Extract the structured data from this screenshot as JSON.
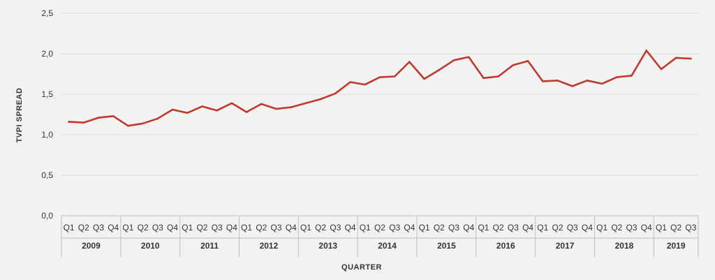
{
  "chart_data": {
    "type": "line",
    "title": "",
    "xlabel": "QUARTER",
    "ylabel": "TVPI SPREAD",
    "ylim": [
      0,
      2.5
    ],
    "yticks": [
      "0,0",
      "0,5",
      "1,0",
      "1,5",
      "2,0",
      "2,5"
    ],
    "grid": true,
    "colors": {
      "line": "#c0392b",
      "grid": "#dadada",
      "axis": "#bfbfbf",
      "text": "#333333",
      "background": "#f2f2f2"
    },
    "groups": [
      {
        "year": "2009",
        "quarters": [
          "Q1",
          "Q2",
          "Q3",
          "Q4"
        ]
      },
      {
        "year": "2010",
        "quarters": [
          "Q1",
          "Q2",
          "Q3",
          "Q4"
        ]
      },
      {
        "year": "2011",
        "quarters": [
          "Q1",
          "Q2",
          "Q3",
          "Q4"
        ]
      },
      {
        "year": "2012",
        "quarters": [
          "Q1",
          "Q2",
          "Q3",
          "Q4"
        ]
      },
      {
        "year": "2013",
        "quarters": [
          "Q1",
          "Q2",
          "Q3",
          "Q4"
        ]
      },
      {
        "year": "2014",
        "quarters": [
          "Q1",
          "Q2",
          "Q3",
          "Q4"
        ]
      },
      {
        "year": "2015",
        "quarters": [
          "Q1",
          "Q2",
          "Q3",
          "Q4"
        ]
      },
      {
        "year": "2016",
        "quarters": [
          "Q1",
          "Q2",
          "Q3",
          "Q4"
        ]
      },
      {
        "year": "2017",
        "quarters": [
          "Q1",
          "Q2",
          "Q3",
          "Q4"
        ]
      },
      {
        "year": "2018",
        "quarters": [
          "Q1",
          "Q2",
          "Q3",
          "Q4"
        ]
      },
      {
        "year": "2019",
        "quarters": [
          "Q1",
          "Q2",
          "Q3"
        ]
      }
    ],
    "series": [
      {
        "values": [
          1.16,
          1.15,
          1.21,
          1.23,
          1.11,
          1.14,
          1.2,
          1.31,
          1.27,
          1.35,
          1.3,
          1.39,
          1.28,
          1.38,
          1.32,
          1.34,
          1.39,
          1.44,
          1.51,
          1.65,
          1.62,
          1.71,
          1.72,
          1.9,
          1.69,
          1.8,
          1.92,
          1.96,
          1.7,
          1.72,
          1.86,
          1.91,
          1.66,
          1.67,
          1.6,
          1.67,
          1.63,
          1.71,
          1.73,
          2.04,
          1.81,
          1.95,
          1.94
        ]
      }
    ]
  }
}
